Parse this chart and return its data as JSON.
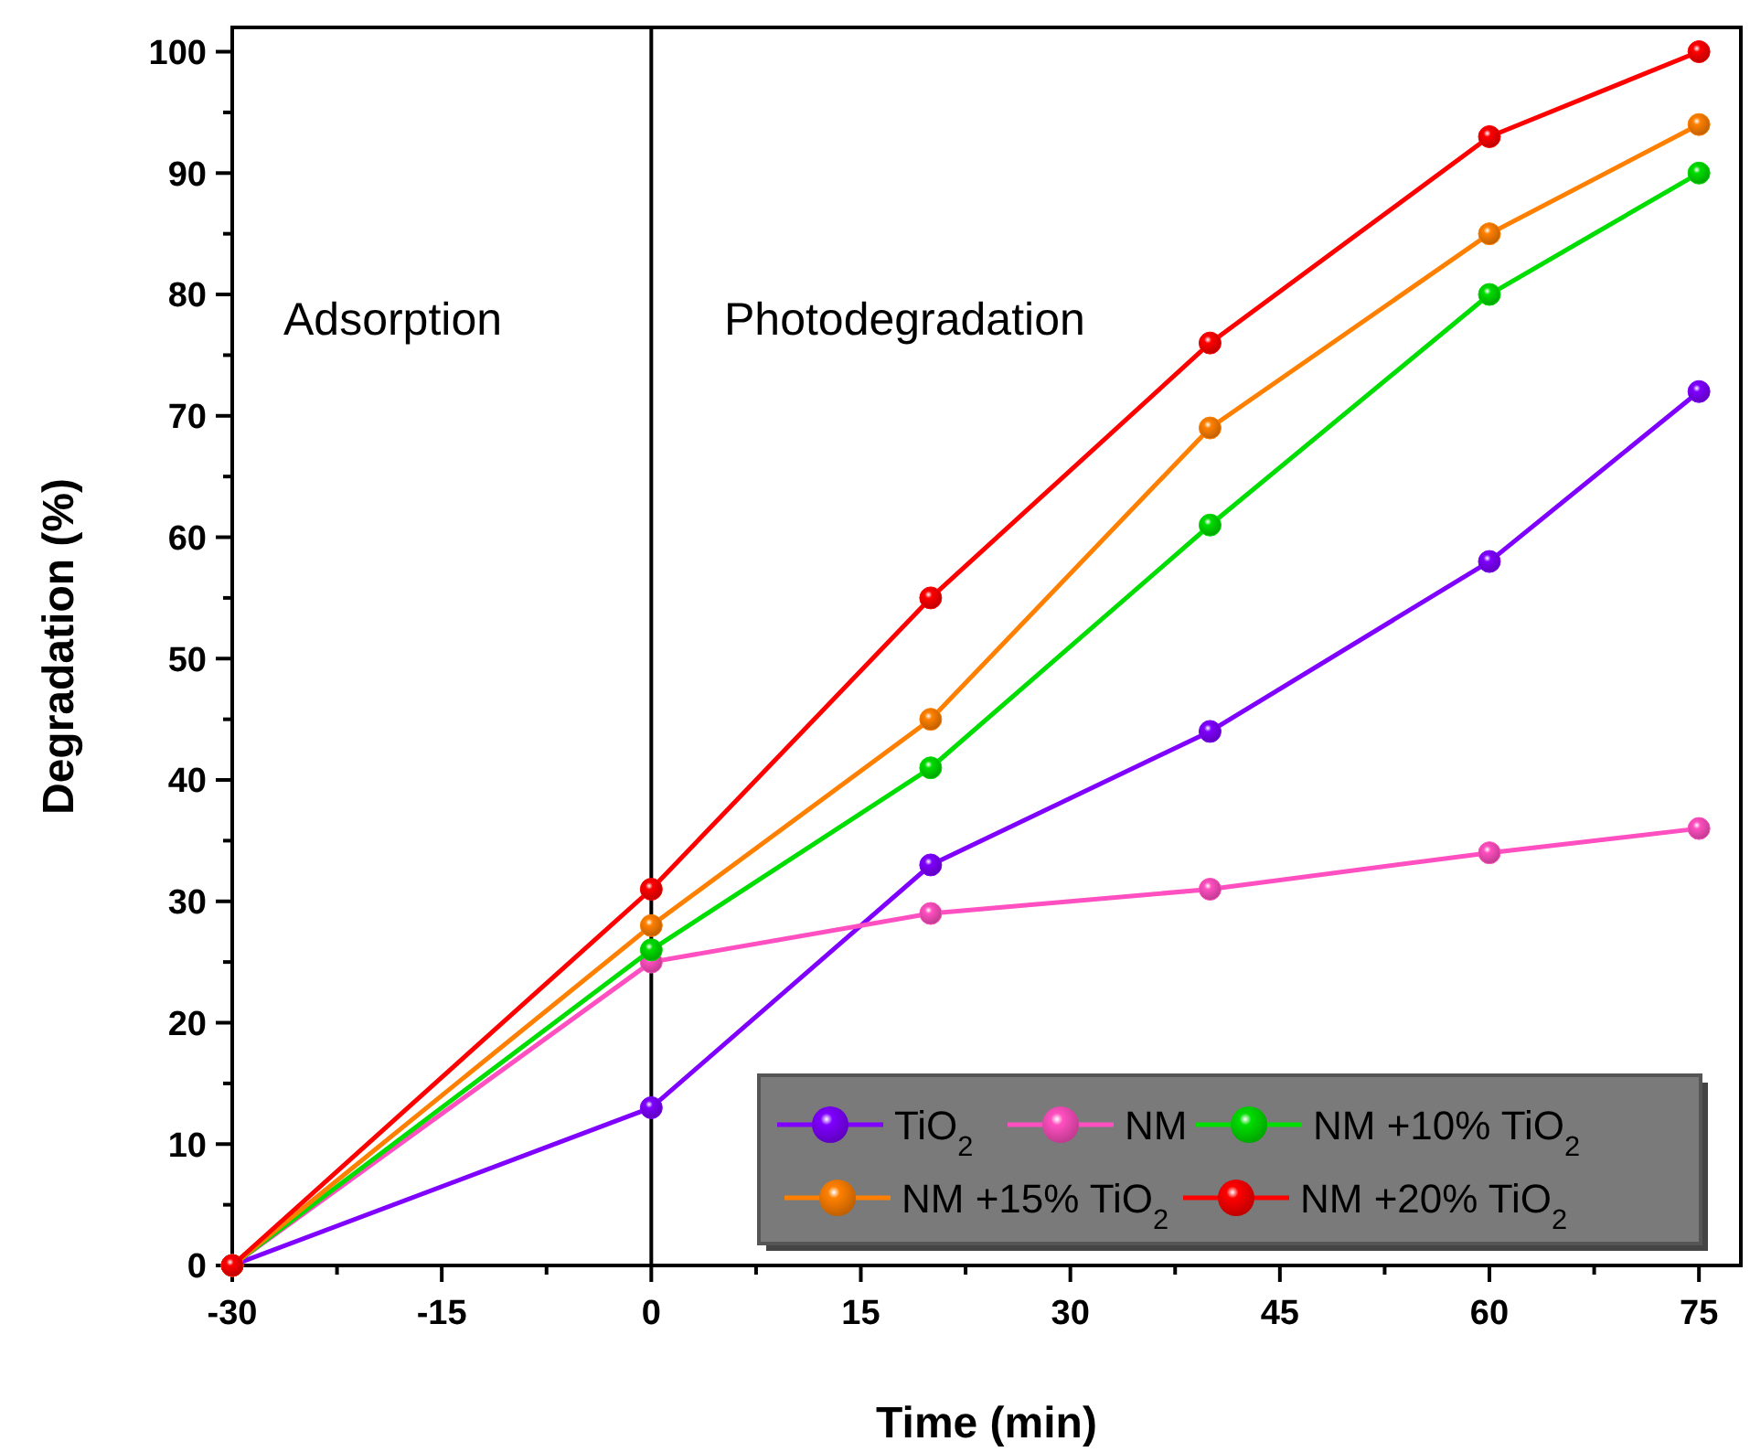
{
  "chart_data": {
    "type": "line",
    "xlabel": "Time (min)",
    "ylabel": "Degradation (%)",
    "xlim": [
      -30,
      78
    ],
    "ylim": [
      0,
      102
    ],
    "xticks": [
      -30,
      {
        "value": -22.5,
        "label": null
      },
      -15,
      {
        "value": -7.5,
        "label": null
      },
      0,
      {
        "value": 7.5,
        "label": null
      },
      15,
      {
        "value": 22.5,
        "label": null
      },
      30,
      {
        "value": 37.5,
        "label": null
      },
      45,
      {
        "value": 52.5,
        "label": null
      },
      60,
      {
        "value": 67.5,
        "label": null
      },
      75
    ],
    "yticks": [
      0,
      {
        "value": 5,
        "label": null
      },
      10,
      {
        "value": 15,
        "label": null
      },
      20,
      {
        "value": 25,
        "label": null
      },
      30,
      {
        "value": 35,
        "label": null
      },
      40,
      {
        "value": 45,
        "label": null
      },
      50,
      {
        "value": 55,
        "label": null
      },
      60,
      {
        "value": 65,
        "label": null
      },
      70,
      {
        "value": 75,
        "label": null
      },
      80,
      {
        "value": 85,
        "label": null
      },
      90,
      {
        "value": 95,
        "label": null
      },
      100
    ],
    "x": [
      -30,
      0,
      20,
      40,
      60,
      75
    ],
    "series": [
      {
        "name": "TiO$_{2}$",
        "color": "#7f00ff",
        "values": [
          0,
          13,
          33,
          44,
          58,
          72
        ]
      },
      {
        "name": "NM",
        "color": "#ff4fc0",
        "values": [
          0,
          25,
          29,
          31,
          34,
          36
        ]
      },
      {
        "name": "NM +10% TiO$_{2}$",
        "color": "#00dd00",
        "values": [
          0,
          26,
          41,
          61,
          80,
          90
        ]
      },
      {
        "name": "NM +15% TiO$_{2}$",
        "color": "#ff8000",
        "values": [
          0,
          28,
          45,
          69,
          85,
          94
        ]
      },
      {
        "name": "NM +20% TiO$_{2}$",
        "color": "#ff0000",
        "values": [
          0,
          31,
          55,
          76,
          93,
          100
        ]
      }
    ],
    "ref_lines": [
      {
        "axis": "x",
        "value": 0,
        "color": "#000000"
      }
    ],
    "annotations": [
      "Adsorption",
      "Photodegradation"
    ],
    "marker": "circle",
    "line_style": "solid",
    "legend": "bottom right",
    "grid": false
  }
}
